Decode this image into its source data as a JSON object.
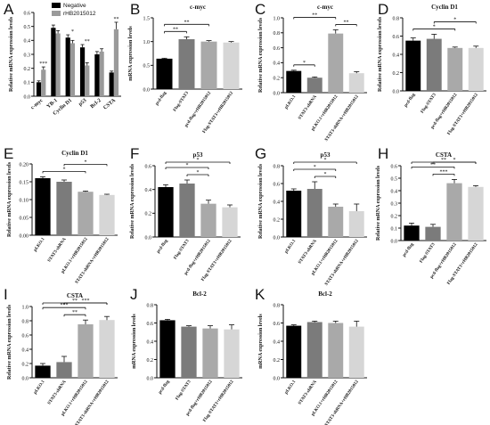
{
  "figure": {
    "legend": [
      {
        "label": "Negative",
        "color": "#000000"
      },
      {
        "label": "rHB2015012",
        "color": "#9a9a9a"
      }
    ]
  },
  "chart_data": [
    {
      "panel": "A",
      "type": "bar",
      "title": "",
      "ylabel": "Relative mRNA expression levels",
      "xlabel": "",
      "ylim": [
        0,
        0.6
      ],
      "yticks": [
        "0.0",
        "0.1",
        "0.2",
        "0.3",
        "0.4",
        "0.5",
        "0.6"
      ],
      "categories": [
        "c-myc",
        "YB-1",
        "Cyclin D1",
        "p53",
        "Bcl-2",
        "CSTA"
      ],
      "series": [
        {
          "name": "Negative",
          "values": [
            0.1,
            0.49,
            0.42,
            0.35,
            0.3,
            0.17
          ],
          "errors": [
            0.01,
            0.02,
            0.02,
            0.02,
            0.02,
            0.01
          ]
        },
        {
          "name": "rHB2015012",
          "values": [
            0.19,
            0.45,
            0.38,
            0.22,
            0.32,
            0.48
          ],
          "errors": [
            0.02,
            0.02,
            0.02,
            0.02,
            0.02,
            0.05
          ]
        }
      ],
      "annotations": [
        "***",
        "*",
        "**",
        "**"
      ]
    },
    {
      "panel": "B",
      "type": "bar",
      "title": "c-myc",
      "ylabel": "mRNA expression levels",
      "ylim": [
        0,
        1.5
      ],
      "yticks": [
        "0.0",
        "0.5",
        "1.0",
        "1.5"
      ],
      "categories": [
        "pcd-flag",
        "Flag-STAT3",
        "pcd-flag+rHB2015012",
        "Flag-STAT3+rHB2015012"
      ],
      "values": [
        0.64,
        1.05,
        1.0,
        0.98
      ],
      "errors": [
        0.01,
        0.05,
        0.02,
        0.02
      ],
      "colors": [
        "#000000",
        "#7b7b7b",
        "#a9a9a9",
        "#d6d6d6"
      ],
      "brackets": [
        {
          "from": 0,
          "to": 1,
          "label": "**"
        },
        {
          "from": 0,
          "to": 2,
          "label": "**"
        }
      ]
    },
    {
      "panel": "C",
      "type": "bar",
      "title": "c-myc",
      "ylabel": "Relative mRNA expression levels",
      "ylim": [
        0,
        1.0
      ],
      "yticks": [
        "0.0",
        "0.2",
        "0.4",
        "0.6",
        "0.8",
        "1.0"
      ],
      "categories": [
        "pLKO.1",
        "STAT3-shRNA",
        "pLKO.1+rHB2015012",
        "STAT3-shRNA+rHB2015012"
      ],
      "values": [
        0.29,
        0.2,
        0.79,
        0.26
      ],
      "errors": [
        0.01,
        0.01,
        0.05,
        0.02
      ],
      "colors": [
        "#000000",
        "#7b7b7b",
        "#a9a9a9",
        "#d6d6d6"
      ],
      "brackets": [
        {
          "from": 0,
          "to": 1,
          "label": "*"
        },
        {
          "from": 0,
          "to": 2,
          "label": "**"
        },
        {
          "from": 2,
          "to": 3,
          "label": "**"
        }
      ]
    },
    {
      "panel": "D",
      "type": "bar",
      "title": "Cyclin D1",
      "ylabel": "Relative mRNA expression levels",
      "ylim": [
        0,
        0.8
      ],
      "yticks": [
        "0.0",
        "0.2",
        "0.4",
        "0.6",
        "0.8"
      ],
      "categories": [
        "pcd-flag",
        "Flag-STAT3",
        "pcd-flag+rHB2015012",
        "Flag-STAT3+rHB2015012"
      ],
      "values": [
        0.55,
        0.57,
        0.47,
        0.47
      ],
      "errors": [
        0.03,
        0.05,
        0.01,
        0.02
      ],
      "colors": [
        "#000000",
        "#7b7b7b",
        "#a9a9a9",
        "#d6d6d6"
      ],
      "brackets": [
        {
          "from": 0,
          "to": 2,
          "label": "*"
        },
        {
          "from": 1,
          "to": 3,
          "label": "*"
        }
      ]
    },
    {
      "panel": "E",
      "type": "bar",
      "title": "Cyclin D1",
      "ylabel": "Relative mRNA expression levels",
      "ylim": [
        0,
        0.2
      ],
      "yticks": [
        "0.00",
        "0.05",
        "0.10",
        "0.15",
        "0.20"
      ],
      "categories": [
        "pLKO.1",
        "STAT3-shRNA",
        "pLKO.1+rHB2015012",
        "STAT3-shRNA+rHB2015012"
      ],
      "values": [
        0.16,
        0.15,
        0.122,
        0.113
      ],
      "errors": [
        0.004,
        0.005,
        0.002,
        0.002
      ],
      "colors": [
        "#000000",
        "#7b7b7b",
        "#a9a9a9",
        "#d6d6d6"
      ],
      "brackets": [
        {
          "from": 0,
          "to": 2,
          "label": "*"
        },
        {
          "from": 1,
          "to": 3,
          "label": "*"
        }
      ]
    },
    {
      "panel": "F",
      "type": "bar",
      "title": "p53",
      "ylabel": "Relative mRNA expression levels",
      "ylim": [
        0,
        0.6
      ],
      "yticks": [
        "0.0",
        "0.2",
        "0.4",
        "0.6"
      ],
      "categories": [
        "pcd-flag",
        "Flag-STAT3",
        "pcd-flag+rHB2015012",
        "Flag-STAT3+rHB2015012"
      ],
      "values": [
        0.42,
        0.45,
        0.28,
        0.25
      ],
      "errors": [
        0.02,
        0.03,
        0.03,
        0.02
      ],
      "colors": [
        "#000000",
        "#7b7b7b",
        "#a9a9a9",
        "#d6d6d6"
      ],
      "brackets": [
        {
          "from": 0,
          "to": 3,
          "label": "*"
        },
        {
          "from": 0,
          "to": 2,
          "label": "*"
        },
        {
          "from": 1,
          "to": 2,
          "label": "*"
        }
      ]
    },
    {
      "panel": "G",
      "type": "bar",
      "title": "p53",
      "ylabel": "Relative mRNA expression levels",
      "ylim": [
        0,
        0.8
      ],
      "yticks": [
        "0.0",
        "0.2",
        "0.4",
        "0.6",
        "0.8"
      ],
      "categories": [
        "pLKO.1",
        "STAT3-shRNA",
        "pLKO.1+rHB2015012",
        "STAT3-shRNA+rHB2015012"
      ],
      "values": [
        0.52,
        0.54,
        0.34,
        0.29
      ],
      "errors": [
        0.02,
        0.08,
        0.03,
        0.08
      ],
      "colors": [
        "#000000",
        "#7b7b7b",
        "#a9a9a9",
        "#d6d6d6"
      ],
      "brackets": [
        {
          "from": 0,
          "to": 3,
          "label": "*"
        },
        {
          "from": 0,
          "to": 2,
          "label": "*"
        },
        {
          "from": 1,
          "to": 2,
          "label": "*"
        }
      ]
    },
    {
      "panel": "H",
      "type": "bar",
      "title": "CSTA",
      "ylabel": "Relative mRNA expression levels",
      "ylim": [
        0,
        0.6
      ],
      "yticks": [
        "0.0",
        "0.1",
        "0.2",
        "0.3",
        "0.4",
        "0.5",
        "0.6"
      ],
      "categories": [
        "pcd-flag",
        "Flag-STAT3",
        "pcd-flag+rHB2015012",
        "Flag-STAT3+rHB2015012"
      ],
      "values": [
        0.12,
        0.11,
        0.46,
        0.43
      ],
      "errors": [
        0.02,
        0.02,
        0.03,
        0.01
      ],
      "colors": [
        "#000000",
        "#7b7b7b",
        "#a9a9a9",
        "#d6d6d6"
      ],
      "brackets": [
        {
          "from": 0,
          "to": 3,
          "label": "**"
        },
        {
          "from": 0,
          "to": 2,
          "label": "**"
        },
        {
          "from": 1,
          "to": 3,
          "label": "*"
        },
        {
          "from": 1,
          "to": 2,
          "label": "***"
        }
      ]
    },
    {
      "panel": "I",
      "type": "bar",
      "title": "CSTA",
      "ylabel": "Relative mRNA expression levels",
      "ylim": [
        0,
        1.0
      ],
      "yticks": [
        "0.0",
        "0.2",
        "0.4",
        "0.6",
        "0.8",
        "1.0"
      ],
      "categories": [
        "pLKO.1",
        "STAT3-shRNA",
        "pLKO.1+rHB2015012",
        "STAT3-shRNA+rHB2015012"
      ],
      "values": [
        0.17,
        0.22,
        0.75,
        0.81
      ],
      "errors": [
        0.03,
        0.08,
        0.06,
        0.05
      ],
      "colors": [
        "#000000",
        "#7b7b7b",
        "#a9a9a9",
        "#d6d6d6"
      ],
      "brackets": [
        {
          "from": 0,
          "to": 3,
          "label": "**"
        },
        {
          "from": 0,
          "to": 2,
          "label": "***"
        },
        {
          "from": 1,
          "to": 3,
          "label": "***"
        },
        {
          "from": 1,
          "to": 2,
          "label": "**"
        }
      ]
    },
    {
      "panel": "J",
      "type": "bar",
      "title": "Bcl-2",
      "ylabel": "mRNA expression levels",
      "ylim": [
        0,
        0.8
      ],
      "yticks": [
        "0.0",
        "0.2",
        "0.4",
        "0.6",
        "0.8"
      ],
      "categories": [
        "pcd-flag",
        "Flag-STAT3",
        "pcd-flag+rHB2015012",
        "Flag-STAT3+rHB2015012"
      ],
      "values": [
        0.63,
        0.56,
        0.54,
        0.53
      ],
      "errors": [
        0.01,
        0.01,
        0.03,
        0.05
      ],
      "colors": [
        "#000000",
        "#7b7b7b",
        "#a9a9a9",
        "#d6d6d6"
      ],
      "brackets": []
    },
    {
      "panel": "K",
      "type": "bar",
      "title": "Bcl-2",
      "ylabel": "mRNA expression levels",
      "ylim": [
        0,
        0.8
      ],
      "yticks": [
        "0.0",
        "0.2",
        "0.4",
        "0.6",
        "0.8"
      ],
      "categories": [
        "pLKO.1",
        "STAT3-shRNA",
        "pLKO.1+rHB2015012",
        "STAT3-shRNA+rHB2015012"
      ],
      "values": [
        0.57,
        0.61,
        0.6,
        0.56
      ],
      "errors": [
        0.01,
        0.01,
        0.02,
        0.06
      ],
      "colors": [
        "#000000",
        "#7b7b7b",
        "#a9a9a9",
        "#d6d6d6"
      ],
      "brackets": []
    }
  ]
}
